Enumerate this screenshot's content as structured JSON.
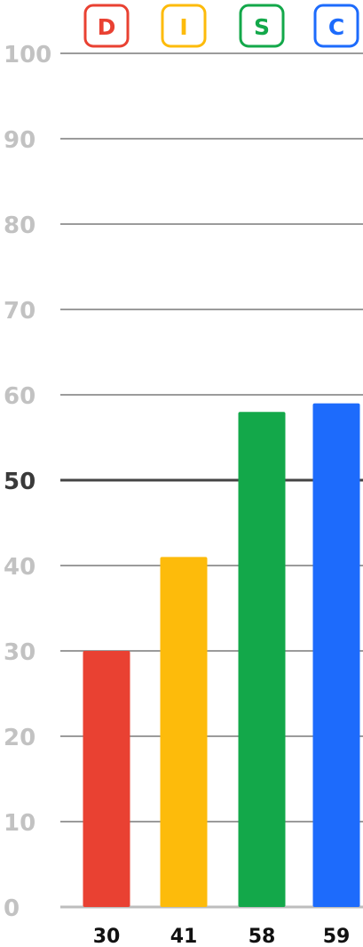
{
  "chart_data": {
    "type": "bar",
    "categories": [
      "D",
      "I",
      "S",
      "C"
    ],
    "values": [
      30,
      41,
      58,
      59
    ],
    "value_labels": [
      "30",
      "41",
      "58",
      "59"
    ],
    "ylim": [
      0,
      100
    ],
    "yticks": [
      0,
      10,
      20,
      30,
      40,
      50,
      60,
      70,
      80,
      90,
      100
    ],
    "ytick_labels": [
      "0",
      "10",
      "20",
      "30",
      "40",
      "50",
      "60",
      "70",
      "80",
      "90",
      "100"
    ],
    "emphasized_tick": 50,
    "grid": true,
    "colors": [
      "#e94132",
      "#fdbb0b",
      "#13a84a",
      "#1d6bfc"
    ],
    "title": "",
    "xlabel": "",
    "ylabel": ""
  }
}
